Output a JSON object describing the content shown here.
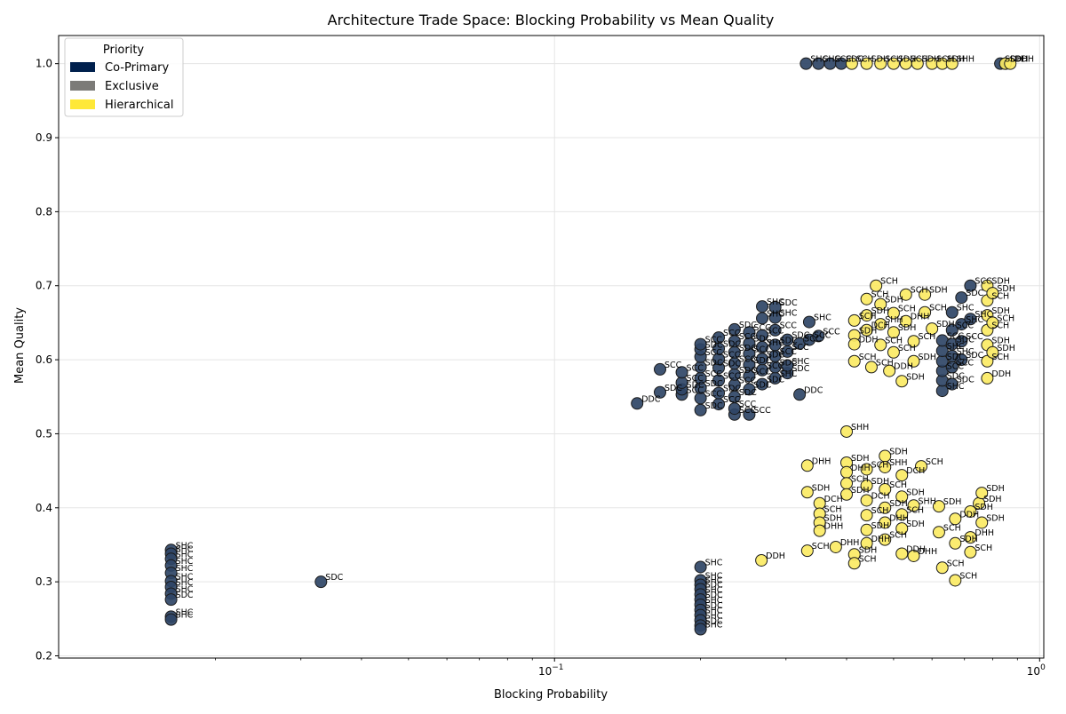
{
  "chart_data": {
    "type": "scatter",
    "title": "Architecture Trade Space: Blocking Probability vs Mean Quality",
    "xlabel": "Blocking Probability",
    "ylabel": "Mean Quality",
    "xscale": "log",
    "xlim": [
      0.0095,
      1.02
    ],
    "ylim": [
      0.197,
      1.038
    ],
    "x_ticks": [
      {
        "value": 0.1,
        "base": "10",
        "exp": "−1"
      },
      {
        "value": 1,
        "base": "10",
        "exp": "0"
      }
    ],
    "y_ticks": [
      "0.2",
      "0.3",
      "0.4",
      "0.5",
      "0.6",
      "0.7",
      "0.8",
      "0.9",
      "1.0"
    ],
    "grid": true,
    "legend": {
      "title": "Priority",
      "position": "top-left",
      "entries": [
        {
          "label": "Co-Primary",
          "color": "#00204d"
        },
        {
          "label": "Exclusive",
          "color": "#7c7b78"
        },
        {
          "label": "Hierarchical",
          "color": "#fee838"
        }
      ]
    },
    "series": [
      {
        "name": "Co-Primary",
        "color": "#2f4566",
        "points": [
          [
            0.0162,
            0.343,
            "SHC"
          ],
          [
            0.0162,
            0.338,
            "SHC"
          ],
          [
            0.0162,
            0.331,
            "SHC"
          ],
          [
            0.0162,
            0.322,
            "SHC"
          ],
          [
            0.0162,
            0.312,
            "SHC"
          ],
          [
            0.0162,
            0.301,
            "SHC"
          ],
          [
            0.0162,
            0.293,
            "SHC"
          ],
          [
            0.0162,
            0.284,
            "SHC"
          ],
          [
            0.0162,
            0.276,
            "SDC"
          ],
          [
            0.0162,
            0.253,
            "SHC"
          ],
          [
            0.0162,
            0.249,
            "SHC"
          ],
          [
            0.033,
            0.3,
            "SDC"
          ],
          [
            0.2,
            0.32,
            "SHC"
          ],
          [
            0.2,
            0.302,
            "SHC"
          ],
          [
            0.2,
            0.296,
            "SHC"
          ],
          [
            0.2,
            0.29,
            "SDC"
          ],
          [
            0.2,
            0.283,
            "SHC"
          ],
          [
            0.2,
            0.276,
            "SDC"
          ],
          [
            0.2,
            0.269,
            "SHC"
          ],
          [
            0.2,
            0.262,
            "SDC"
          ],
          [
            0.2,
            0.255,
            "SHC"
          ],
          [
            0.2,
            0.248,
            "SHC"
          ],
          [
            0.2,
            0.241,
            "SDC"
          ],
          [
            0.2,
            0.236,
            "SHC"
          ],
          [
            0.148,
            0.541,
            "DDC"
          ],
          [
            0.165,
            0.556,
            "SDC"
          ],
          [
            0.165,
            0.587,
            "SCC"
          ],
          [
            0.183,
            0.553,
            "SCC"
          ],
          [
            0.183,
            0.56,
            "SDC"
          ],
          [
            0.183,
            0.569,
            "SCC"
          ],
          [
            0.183,
            0.583,
            "SCC"
          ],
          [
            0.2,
            0.532,
            "SDC"
          ],
          [
            0.2,
            0.548,
            "SCC"
          ],
          [
            0.2,
            0.562,
            "SDC"
          ],
          [
            0.2,
            0.575,
            "SCC"
          ],
          [
            0.2,
            0.59,
            "SDC"
          ],
          [
            0.2,
            0.604,
            "SCC"
          ],
          [
            0.2,
            0.614,
            "SDC"
          ],
          [
            0.2,
            0.621,
            "SCC"
          ],
          [
            0.218,
            0.54,
            "SCC"
          ],
          [
            0.218,
            0.555,
            "SDC"
          ],
          [
            0.218,
            0.572,
            "SCC"
          ],
          [
            0.218,
            0.589,
            "SDC"
          ],
          [
            0.218,
            0.601,
            "SCC"
          ],
          [
            0.218,
            0.615,
            "SDC"
          ],
          [
            0.218,
            0.63,
            "SCC"
          ],
          [
            0.235,
            0.526,
            "SCC"
          ],
          [
            0.235,
            0.534,
            "SCC"
          ],
          [
            0.235,
            0.55,
            "SDC"
          ],
          [
            0.235,
            0.566,
            "SCC"
          ],
          [
            0.235,
            0.58,
            "SDC"
          ],
          [
            0.235,
            0.595,
            "SCC"
          ],
          [
            0.235,
            0.61,
            "SDC"
          ],
          [
            0.235,
            0.625,
            "SCC"
          ],
          [
            0.235,
            0.641,
            "SDC"
          ],
          [
            0.252,
            0.526,
            "SCC"
          ],
          [
            0.252,
            0.56,
            "SDC"
          ],
          [
            0.252,
            0.578,
            "SCC"
          ],
          [
            0.252,
            0.593,
            "SDC"
          ],
          [
            0.252,
            0.608,
            "SCC"
          ],
          [
            0.252,
            0.622,
            "SDC"
          ],
          [
            0.252,
            0.637,
            "SCC"
          ],
          [
            0.268,
            0.567,
            "SDC"
          ],
          [
            0.268,
            0.586,
            "SCC"
          ],
          [
            0.268,
            0.601,
            "SDC"
          ],
          [
            0.268,
            0.617,
            "SHC"
          ],
          [
            0.268,
            0.633,
            "SCC"
          ],
          [
            0.268,
            0.656,
            "SHC"
          ],
          [
            0.268,
            0.672,
            "SHC"
          ],
          [
            0.285,
            0.575,
            "SHC"
          ],
          [
            0.285,
            0.59,
            "SDC"
          ],
          [
            0.285,
            0.605,
            "SCC"
          ],
          [
            0.285,
            0.62,
            "SDC"
          ],
          [
            0.285,
            0.64,
            "SCC"
          ],
          [
            0.285,
            0.657,
            "SHC"
          ],
          [
            0.285,
            0.671,
            "SDC"
          ],
          [
            0.302,
            0.582,
            "SDC"
          ],
          [
            0.302,
            0.592,
            "SHC"
          ],
          [
            0.302,
            0.611,
            "SCC"
          ],
          [
            0.302,
            0.627,
            "SDC"
          ],
          [
            0.32,
            0.553,
            "DDC"
          ],
          [
            0.32,
            0.622,
            "SCC"
          ],
          [
            0.335,
            0.627,
            "SCC"
          ],
          [
            0.335,
            0.651,
            "SHC"
          ],
          [
            0.35,
            0.632,
            "SCC"
          ],
          [
            0.63,
            0.558,
            "SHC"
          ],
          [
            0.63,
            0.572,
            "SDC"
          ],
          [
            0.63,
            0.585,
            "SCC"
          ],
          [
            0.63,
            0.598,
            "SDC"
          ],
          [
            0.63,
            0.612,
            "SHC"
          ],
          [
            0.63,
            0.626,
            "SCC"
          ],
          [
            0.66,
            0.567,
            "SDC"
          ],
          [
            0.66,
            0.59,
            "SCC"
          ],
          [
            0.66,
            0.605,
            "SHC"
          ],
          [
            0.66,
            0.621,
            "SDC"
          ],
          [
            0.66,
            0.64,
            "SCC"
          ],
          [
            0.66,
            0.664,
            "SHC"
          ],
          [
            0.69,
            0.6,
            "SDC"
          ],
          [
            0.69,
            0.625,
            "SCC"
          ],
          [
            0.69,
            0.648,
            "SHC"
          ],
          [
            0.69,
            0.684,
            "SDC"
          ],
          [
            0.72,
            0.7,
            "SCC"
          ],
          [
            0.72,
            0.655,
            "SHC"
          ],
          [
            0.33,
            1.0,
            "SHC"
          ],
          [
            0.35,
            1.0,
            "SHC"
          ],
          [
            0.37,
            1.0,
            "SCC"
          ],
          [
            0.39,
            1.0,
            "SDC"
          ],
          [
            0.83,
            1.0,
            "SDH"
          ],
          [
            0.85,
            1.0,
            "SDH"
          ]
        ]
      },
      {
        "name": "Hierarchical",
        "color": "#fbea64",
        "points": [
          [
            0.4,
            0.503,
            "SHH"
          ],
          [
            0.332,
            0.457,
            "DHH"
          ],
          [
            0.332,
            0.421,
            "SDH"
          ],
          [
            0.332,
            0.342,
            "SCH"
          ],
          [
            0.267,
            0.329,
            "DDH"
          ],
          [
            0.4,
            0.461,
            "SDH"
          ],
          [
            0.4,
            0.448,
            "DHH"
          ],
          [
            0.4,
            0.433,
            "SCH"
          ],
          [
            0.4,
            0.418,
            "SDH"
          ],
          [
            0.352,
            0.406,
            "DCH"
          ],
          [
            0.352,
            0.392,
            "SCH"
          ],
          [
            0.352,
            0.38,
            "SDH"
          ],
          [
            0.352,
            0.369,
            "DHH"
          ],
          [
            0.38,
            0.347,
            "DHH"
          ],
          [
            0.415,
            0.337,
            "SDH"
          ],
          [
            0.415,
            0.325,
            "SCH"
          ],
          [
            0.44,
            0.452,
            "SCH"
          ],
          [
            0.44,
            0.43,
            "SDH"
          ],
          [
            0.44,
            0.41,
            "DCH"
          ],
          [
            0.44,
            0.39,
            "SCH"
          ],
          [
            0.44,
            0.37,
            "SDH"
          ],
          [
            0.44,
            0.352,
            "DHH"
          ],
          [
            0.48,
            0.47,
            "SDH"
          ],
          [
            0.48,
            0.455,
            "SHH"
          ],
          [
            0.48,
            0.425,
            "SCH"
          ],
          [
            0.48,
            0.4,
            "SDH"
          ],
          [
            0.48,
            0.38,
            "DHH"
          ],
          [
            0.48,
            0.357,
            "SCH"
          ],
          [
            0.52,
            0.444,
            "DCH"
          ],
          [
            0.52,
            0.415,
            "SDH"
          ],
          [
            0.52,
            0.391,
            "SCH"
          ],
          [
            0.52,
            0.372,
            "SDH"
          ],
          [
            0.52,
            0.338,
            "DDH"
          ],
          [
            0.55,
            0.403,
            "SHH"
          ],
          [
            0.55,
            0.335,
            "DHH"
          ],
          [
            0.57,
            0.456,
            "SCH"
          ],
          [
            0.62,
            0.402,
            "SDH"
          ],
          [
            0.62,
            0.367,
            "SCH"
          ],
          [
            0.63,
            0.319,
            "SCH"
          ],
          [
            0.67,
            0.302,
            "SCH"
          ],
          [
            0.67,
            0.385,
            "DDH"
          ],
          [
            0.67,
            0.352,
            "SDH"
          ],
          [
            0.72,
            0.395,
            "SDH"
          ],
          [
            0.72,
            0.36,
            "DHH"
          ],
          [
            0.75,
            0.406,
            "SDH"
          ],
          [
            0.76,
            0.42,
            "SDH"
          ],
          [
            0.76,
            0.38,
            "SDH"
          ],
          [
            0.72,
            0.34,
            "SCH"
          ],
          [
            0.415,
            0.653,
            "SCH"
          ],
          [
            0.415,
            0.633,
            "SDH"
          ],
          [
            0.415,
            0.598,
            "SCH"
          ],
          [
            0.415,
            0.621,
            "DDH"
          ],
          [
            0.44,
            0.682,
            "SCH"
          ],
          [
            0.44,
            0.66,
            "SDH"
          ],
          [
            0.44,
            0.64,
            "DCH"
          ],
          [
            0.45,
            0.59,
            "SCH"
          ],
          [
            0.46,
            0.7,
            "SCH"
          ],
          [
            0.47,
            0.675,
            "SDH"
          ],
          [
            0.47,
            0.648,
            "SHH"
          ],
          [
            0.47,
            0.62,
            "SCH"
          ],
          [
            0.49,
            0.585,
            "DDH"
          ],
          [
            0.5,
            0.663,
            "SCH"
          ],
          [
            0.5,
            0.637,
            "SDH"
          ],
          [
            0.5,
            0.61,
            "SCH"
          ],
          [
            0.52,
            0.571,
            "SDH"
          ],
          [
            0.53,
            0.688,
            "SCH"
          ],
          [
            0.53,
            0.652,
            "DHH"
          ],
          [
            0.55,
            0.625,
            "SCH"
          ],
          [
            0.55,
            0.598,
            "SDH"
          ],
          [
            0.58,
            0.688,
            "SDH"
          ],
          [
            0.58,
            0.664,
            "SCH"
          ],
          [
            0.6,
            0.642,
            "SDH"
          ],
          [
            0.78,
            0.7,
            "SDH"
          ],
          [
            0.78,
            0.68,
            "SCH"
          ],
          [
            0.78,
            0.66,
            "SDH"
          ],
          [
            0.78,
            0.64,
            "SCH"
          ],
          [
            0.78,
            0.62,
            "SDH"
          ],
          [
            0.78,
            0.598,
            "SCH"
          ],
          [
            0.78,
            0.575,
            "DDH"
          ],
          [
            0.8,
            0.69,
            "SDH"
          ],
          [
            0.8,
            0.65,
            "SCH"
          ],
          [
            0.8,
            0.61,
            "SDH"
          ],
          [
            0.41,
            1.0,
            "SCH"
          ],
          [
            0.44,
            1.0,
            "SDH"
          ],
          [
            0.47,
            1.0,
            "SCH"
          ],
          [
            0.5,
            1.0,
            "SDH"
          ],
          [
            0.53,
            1.0,
            "SCH"
          ],
          [
            0.56,
            1.0,
            "SDH"
          ],
          [
            0.6,
            1.0,
            "SCH"
          ],
          [
            0.63,
            1.0,
            "SDH"
          ],
          [
            0.66,
            1.0,
            "SHH"
          ],
          [
            0.85,
            1.0,
            "SDH"
          ],
          [
            0.87,
            1.0,
            "DDH"
          ]
        ]
      }
    ]
  }
}
